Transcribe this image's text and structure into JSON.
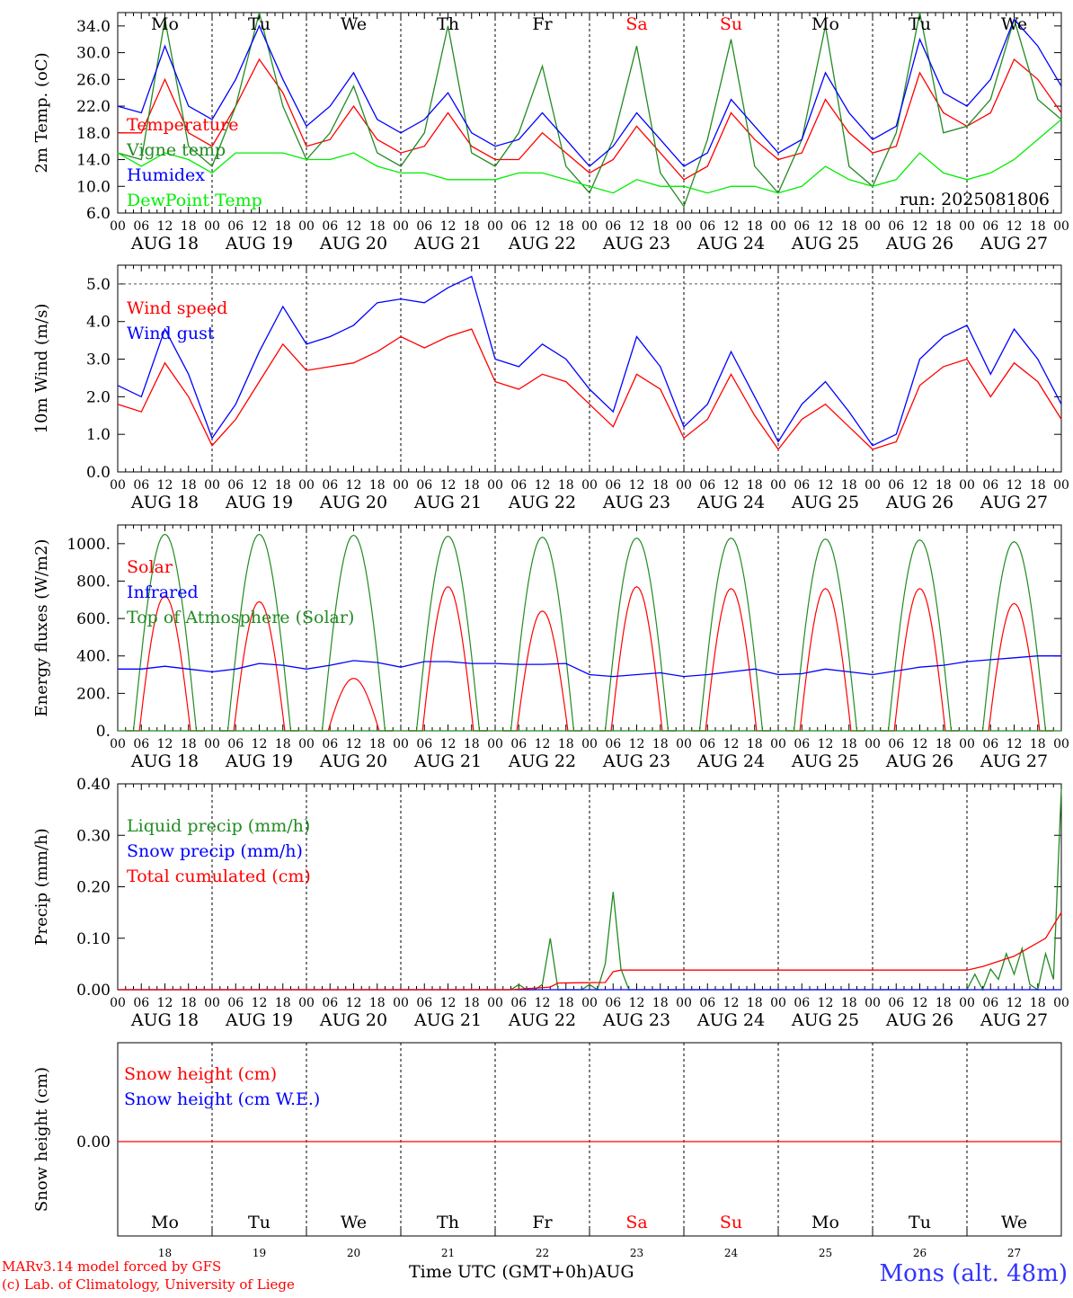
{
  "x_axis": {
    "hour_ticks": [
      "00",
      "06",
      "12",
      "18"
    ],
    "end_tick": "00",
    "date_labels": [
      "AUG 18",
      "AUG 19",
      "AUG 20",
      "AUG 21",
      "AUG 22",
      "AUG 23",
      "AUG 24",
      "AUG 25",
      "AUG 26",
      "AUG 27"
    ],
    "day_names": [
      "Mo",
      "Tu",
      "We",
      "Th",
      "Fr",
      "Sa",
      "Su",
      "Mo",
      "Tu",
      "We"
    ],
    "weekend_flags": [
      false,
      false,
      false,
      false,
      false,
      true,
      true,
      false,
      false,
      false
    ],
    "day_numbers": [
      "18",
      "19",
      "20",
      "21",
      "22",
      "23",
      "24",
      "25",
      "26",
      "27"
    ],
    "title": "Time UTC (GMT+0h)",
    "month": "AUG"
  },
  "colors": {
    "red": "#ff0000",
    "darkgreen": "#228b22",
    "blue": "#0000ff",
    "lightgreen": "#00ee00",
    "grey": "#555555"
  },
  "footer": {
    "model": "MARv3.14 model forced by GFS",
    "credit": "(c) Lab. of Climatology, University of Liege",
    "location": "Mons (alt. 48m)"
  },
  "chart_data": [
    {
      "id": "temp",
      "type": "line",
      "ylabel": "2m Temp. (oC)",
      "ylim": [
        6,
        36
      ],
      "yticks": [
        "6.0",
        "10.0",
        "14.0",
        "18.0",
        "22.0",
        "26.0",
        "30.0",
        "34.0"
      ],
      "annotation": "run: 2025081806",
      "show_day_names": true,
      "series": [
        {
          "name": "Temperature",
          "color": "#ff0000",
          "x": [
            0,
            6,
            12,
            18,
            24,
            30,
            36,
            42,
            48,
            54,
            60,
            66,
            72,
            78,
            84,
            90,
            96,
            102,
            108,
            114,
            120,
            126,
            132,
            138,
            144,
            150,
            156,
            162,
            168,
            174,
            180,
            186,
            192,
            198,
            204,
            210,
            216,
            222,
            228,
            234,
            240
          ],
          "values": [
            18,
            18,
            26,
            18,
            16,
            22,
            29,
            24,
            16,
            17,
            22,
            17,
            15,
            16,
            21,
            16,
            14,
            14,
            18,
            15,
            12,
            14,
            19,
            15,
            11,
            13,
            21,
            17,
            14,
            15,
            23,
            18,
            15,
            16,
            27,
            21,
            19,
            21,
            29,
            26,
            21
          ]
        },
        {
          "name": "Vigne temp",
          "color": "#228b22",
          "x": [
            0,
            6,
            12,
            18,
            24,
            30,
            36,
            42,
            48,
            54,
            60,
            66,
            72,
            78,
            84,
            90,
            96,
            102,
            108,
            114,
            120,
            126,
            132,
            138,
            144,
            150,
            156,
            162,
            168,
            174,
            180,
            186,
            192,
            198,
            204,
            210,
            216,
            222,
            228,
            234,
            240
          ],
          "values": [
            15,
            14,
            35,
            16,
            13,
            22,
            36,
            22,
            14,
            18,
            25,
            15,
            13,
            18,
            34,
            15,
            13,
            18,
            28,
            13,
            9,
            17,
            31,
            12,
            7,
            17,
            32,
            13,
            9,
            17,
            34,
            13,
            10,
            18,
            36,
            18,
            19,
            23,
            35,
            23,
            20
          ]
        },
        {
          "name": "Humidex",
          "color": "#0000ff",
          "x": [
            0,
            6,
            12,
            18,
            24,
            30,
            36,
            42,
            48,
            54,
            60,
            66,
            72,
            78,
            84,
            90,
            96,
            102,
            108,
            114,
            120,
            126,
            132,
            138,
            144,
            150,
            156,
            162,
            168,
            174,
            180,
            186,
            192,
            198,
            204,
            210,
            216,
            222,
            228,
            234,
            240
          ],
          "values": [
            22,
            21,
            31,
            22,
            20,
            26,
            34,
            26,
            19,
            22,
            27,
            20,
            18,
            20,
            24,
            18,
            16,
            17,
            21,
            17,
            13,
            16,
            21,
            17,
            13,
            15,
            23,
            19,
            15,
            17,
            27,
            21,
            17,
            19,
            32,
            24,
            22,
            26,
            35,
            31,
            25
          ]
        },
        {
          "name": "DewPoint Temp",
          "color": "#00ee00",
          "x": [
            0,
            6,
            12,
            18,
            24,
            30,
            36,
            42,
            48,
            54,
            60,
            66,
            72,
            78,
            84,
            90,
            96,
            102,
            108,
            114,
            120,
            126,
            132,
            138,
            144,
            150,
            156,
            162,
            168,
            174,
            180,
            186,
            192,
            198,
            204,
            210,
            216,
            222,
            228,
            234,
            240
          ],
          "values": [
            15,
            13,
            15,
            14,
            12,
            15,
            15,
            15,
            14,
            14,
            15,
            13,
            12,
            12,
            11,
            11,
            11,
            12,
            12,
            11,
            10,
            9,
            11,
            10,
            10,
            9,
            10,
            10,
            9,
            10,
            13,
            11,
            10,
            11,
            15,
            12,
            11,
            12,
            14,
            17,
            20
          ]
        }
      ]
    },
    {
      "id": "wind",
      "type": "line",
      "ylabel": "10m Wind (m/s)",
      "ylim": [
        0,
        5.5
      ],
      "yticks": [
        "0.0",
        "1.0",
        "2.0",
        "3.0",
        "4.0",
        "5.0"
      ],
      "dashed_ref": 5.0,
      "series": [
        {
          "name": "Wind speed",
          "color": "#ff0000",
          "x": [
            0,
            6,
            12,
            18,
            24,
            30,
            36,
            42,
            48,
            54,
            60,
            66,
            72,
            78,
            84,
            90,
            96,
            102,
            108,
            114,
            120,
            126,
            132,
            138,
            144,
            150,
            156,
            162,
            168,
            174,
            180,
            186,
            192,
            198,
            204,
            210,
            216,
            222,
            228,
            234,
            240
          ],
          "values": [
            1.8,
            1.6,
            2.9,
            2.0,
            0.7,
            1.4,
            2.4,
            3.4,
            2.7,
            2.8,
            2.9,
            3.2,
            3.6,
            3.3,
            3.6,
            3.8,
            2.4,
            2.2,
            2.6,
            2.4,
            1.8,
            1.2,
            2.6,
            2.2,
            0.9,
            1.4,
            2.6,
            1.5,
            0.6,
            1.4,
            1.8,
            1.2,
            0.6,
            0.8,
            2.3,
            2.8,
            3.0,
            2.0,
            2.9,
            2.4,
            1.4
          ]
        },
        {
          "name": "Wind gust",
          "color": "#0000ff",
          "x": [
            0,
            6,
            12,
            18,
            24,
            30,
            36,
            42,
            48,
            54,
            60,
            66,
            72,
            78,
            84,
            90,
            96,
            102,
            108,
            114,
            120,
            126,
            132,
            138,
            144,
            150,
            156,
            162,
            168,
            174,
            180,
            186,
            192,
            198,
            204,
            210,
            216,
            222,
            228,
            234,
            240
          ],
          "values": [
            2.3,
            2.0,
            3.8,
            2.6,
            0.9,
            1.8,
            3.2,
            4.4,
            3.4,
            3.6,
            3.9,
            4.5,
            4.6,
            4.5,
            4.9,
            5.2,
            3.0,
            2.8,
            3.4,
            3.0,
            2.2,
            1.6,
            3.6,
            2.8,
            1.2,
            1.8,
            3.2,
            2.0,
            0.8,
            1.8,
            2.4,
            1.6,
            0.7,
            1.0,
            3.0,
            3.6,
            3.9,
            2.6,
            3.8,
            3.0,
            1.8
          ]
        }
      ]
    },
    {
      "id": "energy",
      "type": "line",
      "ylabel": "Energy fluxes (W/m2)",
      "ylim": [
        0,
        1100
      ],
      "yticks": [
        "0.",
        "200.",
        "400.",
        "600.",
        "800.",
        "1000."
      ],
      "solar_peaks": [
        720,
        690,
        280,
        770,
        640,
        770,
        760,
        760,
        760,
        680
      ],
      "toa_peaks": [
        1050,
        1050,
        1045,
        1040,
        1035,
        1030,
        1030,
        1025,
        1020,
        1010
      ],
      "series": [
        {
          "name": "Solar",
          "color": "#ff0000"
        },
        {
          "name": "Infrared",
          "color": "#0000ff",
          "x": [
            0,
            6,
            12,
            18,
            24,
            30,
            36,
            42,
            48,
            54,
            60,
            66,
            72,
            78,
            84,
            90,
            96,
            102,
            108,
            114,
            120,
            126,
            132,
            138,
            144,
            150,
            156,
            162,
            168,
            174,
            180,
            186,
            192,
            198,
            204,
            210,
            216,
            222,
            228,
            234,
            240
          ],
          "values": [
            330,
            330,
            345,
            330,
            315,
            330,
            360,
            350,
            330,
            350,
            375,
            365,
            340,
            370,
            370,
            360,
            360,
            355,
            355,
            360,
            300,
            290,
            300,
            310,
            290,
            300,
            315,
            330,
            300,
            305,
            330,
            315,
            300,
            320,
            340,
            350,
            370,
            380,
            390,
            400,
            400
          ]
        },
        {
          "name": "Top of Atmosphere (Solar)",
          "color": "#228b22"
        }
      ]
    },
    {
      "id": "precip",
      "type": "line",
      "ylabel": "Precip (mm/h)",
      "ylim": [
        0,
        0.4
      ],
      "yticks": [
        "0.00",
        "0.10",
        "0.20",
        "0.30",
        "0.40"
      ],
      "series": [
        {
          "name": "Liquid precip (mm/h)",
          "color": "#228b22",
          "x": [
            0,
            100,
            102,
            104,
            106,
            108,
            110,
            112,
            114,
            118,
            120,
            122,
            124,
            126,
            128,
            130,
            216,
            218,
            220,
            222,
            224,
            226,
            228,
            230,
            232,
            234,
            236,
            238,
            240
          ],
          "values": [
            0,
            0,
            0.01,
            0,
            0,
            0.01,
            0.1,
            0,
            0,
            0,
            0.01,
            0,
            0.05,
            0.19,
            0.04,
            0,
            0,
            0.03,
            0,
            0.04,
            0.02,
            0.07,
            0.03,
            0.08,
            0.01,
            0,
            0.07,
            0.02,
            0.39
          ]
        },
        {
          "name": "Snow precip (mm/h)",
          "color": "#0000ff",
          "x": [
            0,
            240
          ],
          "values": [
            0,
            0
          ]
        },
        {
          "name": "Total cumulated (cm)",
          "color": "#ff0000",
          "x": [
            0,
            100,
            110,
            112,
            124,
            126,
            128,
            216,
            220,
            228,
            236,
            240
          ],
          "values": [
            0,
            0,
            0.005,
            0.013,
            0.014,
            0.035,
            0.038,
            0.038,
            0.045,
            0.065,
            0.1,
            0.15
          ]
        }
      ]
    },
    {
      "id": "snow",
      "type": "line",
      "ylabel": "Snow height (cm)",
      "yticks": [
        "0.00"
      ],
      "show_day_names_bottom": true,
      "series": [
        {
          "name": "Snow height (cm)",
          "color": "#ff0000",
          "x": [
            0,
            240
          ],
          "values": [
            0,
            0
          ]
        },
        {
          "name": "Snow height (cm W.E.)",
          "color": "#0000ff"
        }
      ]
    }
  ]
}
